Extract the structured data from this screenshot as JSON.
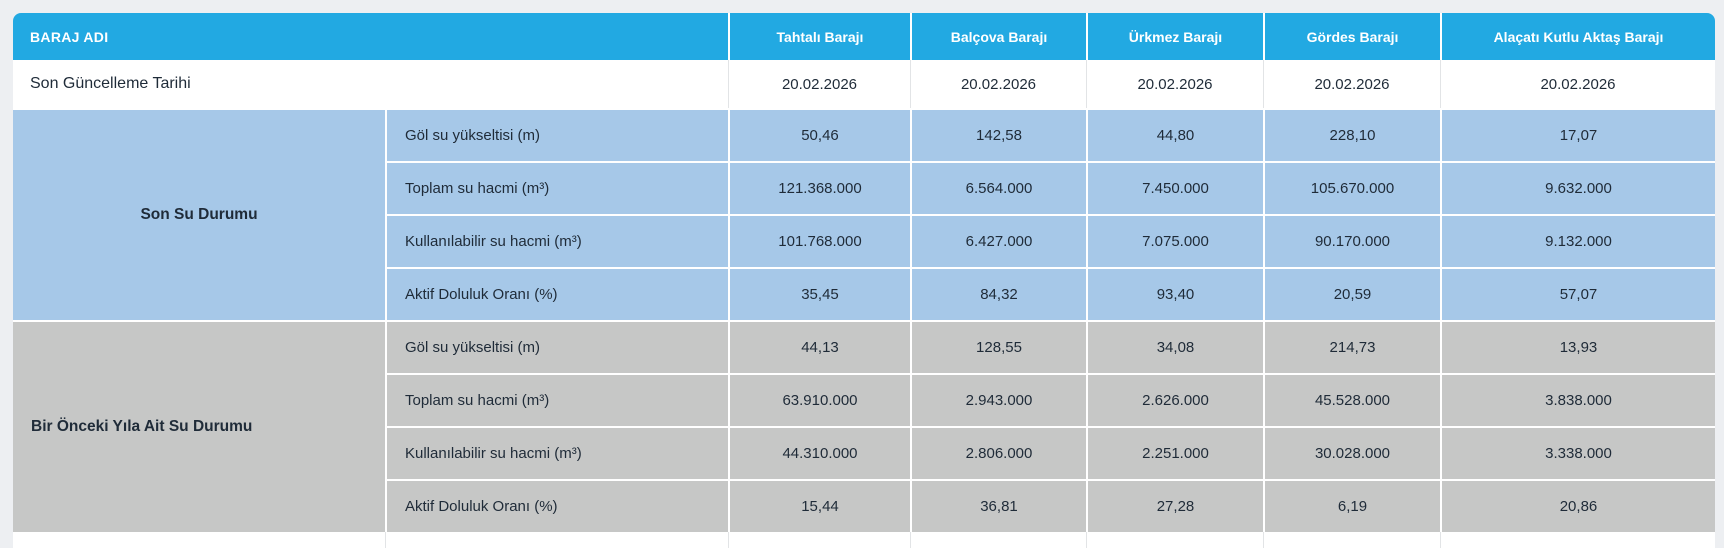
{
  "theme": {
    "page_bg": "#edeff2",
    "header_bg": "#22a9e2",
    "sec1_bg": "#a6c8e8",
    "sec2_bg": "#c6c7c6",
    "text": "#1f2b38"
  },
  "chart_data": {
    "type": "table",
    "header": {
      "corner": "BARAJ ADI",
      "dams": [
        "Tahtalı Barajı",
        "Balçova Barajı",
        "Ürkmez Barajı",
        "Gördes Barajı",
        "Alaçatı Kutlu Aktaş Barajı"
      ]
    },
    "update_row": {
      "label": "Son Güncelleme Tarihi",
      "values": [
        "20.02.2026",
        "20.02.2026",
        "20.02.2026",
        "20.02.2026",
        "20.02.2026"
      ]
    },
    "sections": [
      {
        "title": "Son Su Durumu",
        "rows": [
          {
            "label": "Göl su yükseltisi (m)",
            "values": [
              "50,46",
              "142,58",
              "44,80",
              "228,10",
              "17,07"
            ]
          },
          {
            "label": "Toplam su hacmi (m³)",
            "values": [
              "121.368.000",
              "6.564.000",
              "7.450.000",
              "105.670.000",
              "9.632.000"
            ]
          },
          {
            "label": "Kullanılabilir su hacmi (m³)",
            "values": [
              "101.768.000",
              "6.427.000",
              "7.075.000",
              "90.170.000",
              "9.132.000"
            ]
          },
          {
            "label": "Aktif Doluluk Oranı (%)",
            "values": [
              "35,45",
              "84,32",
              "93,40",
              "20,59",
              "57,07"
            ]
          }
        ]
      },
      {
        "title": "Bir Önceki Yıla Ait Su Durumu",
        "rows": [
          {
            "label": "Göl su yükseltisi (m)",
            "values": [
              "44,13",
              "128,55",
              "34,08",
              "214,73",
              "13,93"
            ]
          },
          {
            "label": "Toplam su hacmi (m³)",
            "values": [
              "63.910.000",
              "2.943.000",
              "2.626.000",
              "45.528.000",
              "3.838.000"
            ]
          },
          {
            "label": "Kullanılabilir su hacmi (m³)",
            "values": [
              "44.310.000",
              "2.806.000",
              "2.251.000",
              "30.028.000",
              "3.338.000"
            ]
          },
          {
            "label": "Aktif Doluluk Oranı (%)",
            "values": [
              "15,44",
              "36,81",
              "27,28",
              "6,19",
              "20,86"
            ]
          }
        ]
      }
    ]
  }
}
